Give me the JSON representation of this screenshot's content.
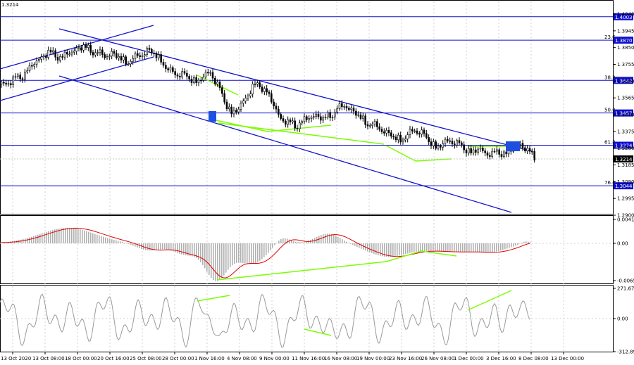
{
  "header": {
    "price": "1.3214"
  },
  "colors": {
    "channel": "#1010cc",
    "divergence": "#7cfc00",
    "signal": "#e00000",
    "histogram": "#b0b0b0",
    "cci": "#9a9a9a",
    "candle": "#000000",
    "marker": "#1e50e0"
  },
  "chart_data": [
    {
      "type": "candlestick",
      "title": "",
      "y_ticks": [
        "1.4040",
        "1.3945",
        "1.3850",
        "1.3755",
        "1.3660",
        "1.3565",
        "1.3470",
        "1.3375",
        "1.3280",
        "1.3185",
        "1.3090",
        "1.2995",
        "1.2900"
      ],
      "ylim": [
        1.2885,
        1.409
      ],
      "x_ticks": [
        "13 Oct 2020",
        "13 Oct 08:00",
        "18 Oct 00:00",
        "20 Oct 16:00",
        "25 Oct 08:00",
        "28 Oct 00:00",
        "1 Nov 16:00",
        "4 Nov 08:00",
        "9 Nov 00:00",
        "11 Nov 16:00",
        "16 Nov 08:00",
        "19 Nov 00:00",
        "23 Nov 16:00",
        "26 Nov 08:00",
        "1 Dec 00:00",
        "3 Dec 16:00",
        "8 Dec 08:00",
        "13 Dec 00:00"
      ],
      "horizontal_levels": [
        {
          "price": 1.4003,
          "label": "1.4003",
          "fib": ""
        },
        {
          "price": 1.387,
          "label": "1.3870",
          "fib": "23.6"
        },
        {
          "price": 1.3642,
          "label": "1.3642",
          "fib": "38.2"
        },
        {
          "price": 1.3457,
          "label": "1.3457",
          "fib": "50.0"
        },
        {
          "price": 1.3274,
          "label": "1.3274",
          "fib": "61.8"
        },
        {
          "price": 1.3044,
          "label": "1.3044",
          "fib": "76.4"
        }
      ],
      "current_price": "1.3214",
      "close_series": [
        1.362,
        1.364,
        1.3665,
        1.37,
        1.374,
        1.377,
        1.3795,
        1.379,
        1.3775,
        1.38,
        1.3815,
        1.383,
        1.3818,
        1.38,
        1.378,
        1.379,
        1.377,
        1.375,
        1.3765,
        1.3785,
        1.3805,
        1.3795,
        1.376,
        1.37,
        1.368,
        1.367,
        1.3655,
        1.364,
        1.366,
        1.369,
        1.361,
        1.353,
        1.346,
        1.348,
        1.354,
        1.36,
        1.362,
        1.358,
        1.35,
        1.342,
        1.34,
        1.339,
        1.341,
        1.343,
        1.344,
        1.342,
        1.345,
        1.348,
        1.35,
        1.347,
        1.344,
        1.341,
        1.339,
        1.337,
        1.334,
        1.332,
        1.331,
        1.333,
        1.336,
        1.334,
        1.33,
        1.327,
        1.328,
        1.33,
        1.328,
        1.326,
        1.324,
        1.325,
        1.323,
        1.322,
        1.324,
        1.323,
        1.326,
        1.328,
        1.324,
        1.321
      ],
      "annotations": [
        "descending channel",
        "ascending channel",
        "bullish divergence",
        "signal box"
      ]
    },
    {
      "type": "macd",
      "y_ticks": [
        "0.00418",
        "0.00",
        "-0.00652"
      ],
      "ylim": [
        -0.00652,
        0.00418
      ]
    },
    {
      "type": "cci",
      "y_ticks": [
        "271.6708",
        "0.00",
        "-312.893"
      ],
      "ylim": [
        -312.893,
        271.6708
      ]
    }
  ]
}
